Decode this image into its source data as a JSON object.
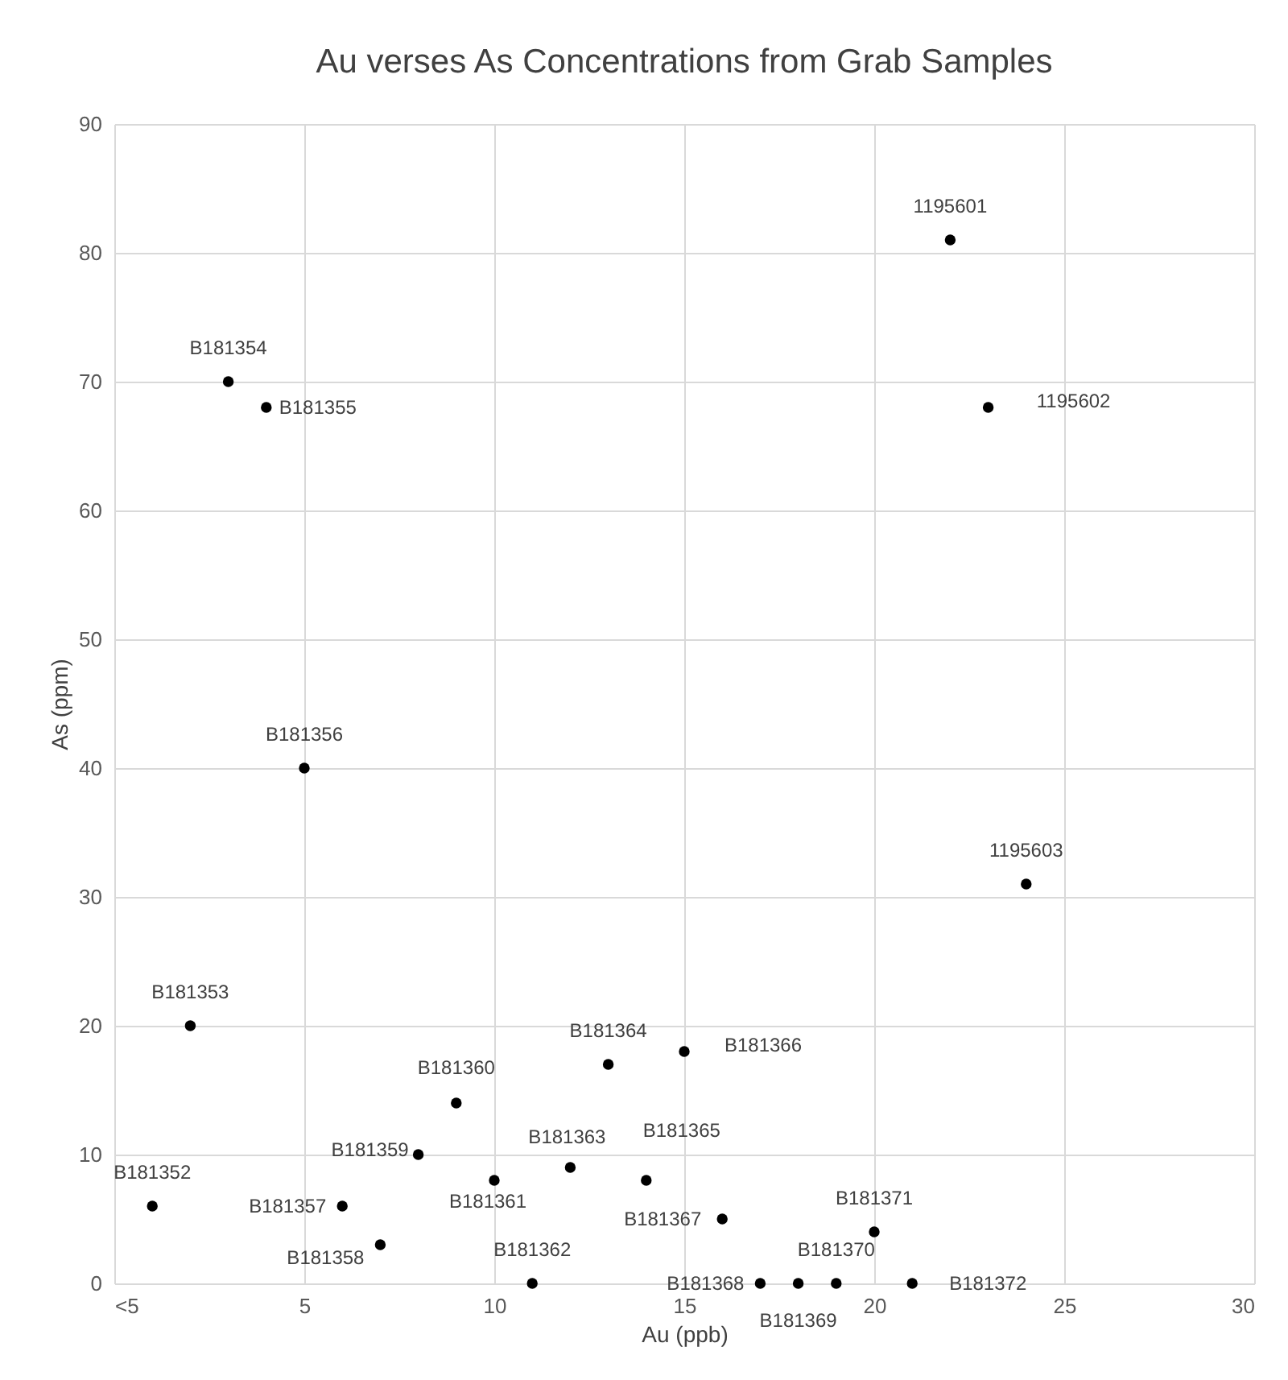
{
  "chart_data": {
    "type": "scatter",
    "title": "Au verses As Concentrations from Grab Samples",
    "xlabel": "Au (ppb)",
    "ylabel": "As (ppm)",
    "x": [
      1,
      2,
      3,
      4,
      5,
      6,
      7,
      8,
      9,
      10,
      11,
      12,
      13,
      14,
      15,
      16,
      17,
      18,
      19,
      20,
      21,
      22,
      23,
      24
    ],
    "series": [
      {
        "color": "#000000",
        "values": [
          6,
          20,
          70,
          68,
          40,
          6,
          3,
          10,
          14,
          8,
          0,
          9,
          17,
          8,
          18,
          5,
          0,
          0,
          0,
          4,
          0,
          81,
          68,
          31
        ]
      }
    ],
    "xlim": [
      0,
      30
    ],
    "xticks": [
      {
        "value": 0,
        "label": "<5"
      },
      5,
      10,
      15,
      20,
      25,
      30
    ],
    "ylim": [
      0,
      90
    ],
    "yticks": [
      0,
      10,
      20,
      30,
      40,
      50,
      60,
      70,
      80,
      90
    ],
    "grid": true,
    "marker": "circle",
    "annotations": [
      {
        "text": "B181352",
        "x": 1,
        "y": 6
      },
      {
        "text": "B181353",
        "x": 2,
        "y": 20
      },
      {
        "text": "B181354",
        "x": 3,
        "y": 70
      },
      {
        "text": "B181355",
        "x": 4,
        "y": 68
      },
      {
        "text": "B181356",
        "x": 5,
        "y": 40
      },
      {
        "text": "B181357",
        "x": 6,
        "y": 6
      },
      {
        "text": "B181358",
        "x": 7,
        "y": 3
      },
      {
        "text": "B181359",
        "x": 8,
        "y": 10
      },
      {
        "text": "B181360",
        "x": 9,
        "y": 14
      },
      {
        "text": "B181361",
        "x": 10,
        "y": 8
      },
      {
        "text": "B181362",
        "x": 11,
        "y": 0
      },
      {
        "text": "B181363",
        "x": 12,
        "y": 9
      },
      {
        "text": "B181364",
        "x": 13,
        "y": 17
      },
      {
        "text": "B181365",
        "x": 14,
        "y": 8
      },
      {
        "text": "B181366",
        "x": 15,
        "y": 18
      },
      {
        "text": "B181367",
        "x": 16,
        "y": 5
      },
      {
        "text": "B181368",
        "x": 17,
        "y": 0
      },
      {
        "text": "B181369",
        "x": 18,
        "y": 0
      },
      {
        "text": "B181370",
        "x": 19,
        "y": 0
      },
      {
        "text": "B181371",
        "x": 20,
        "y": 4
      },
      {
        "text": "B181372",
        "x": 21,
        "y": 0
      },
      {
        "text": "1195601",
        "x": 22,
        "y": 81
      },
      {
        "text": "1195602",
        "x": 23,
        "y": 68
      },
      {
        "text": "1195603",
        "x": 24,
        "y": 31
      }
    ]
  }
}
